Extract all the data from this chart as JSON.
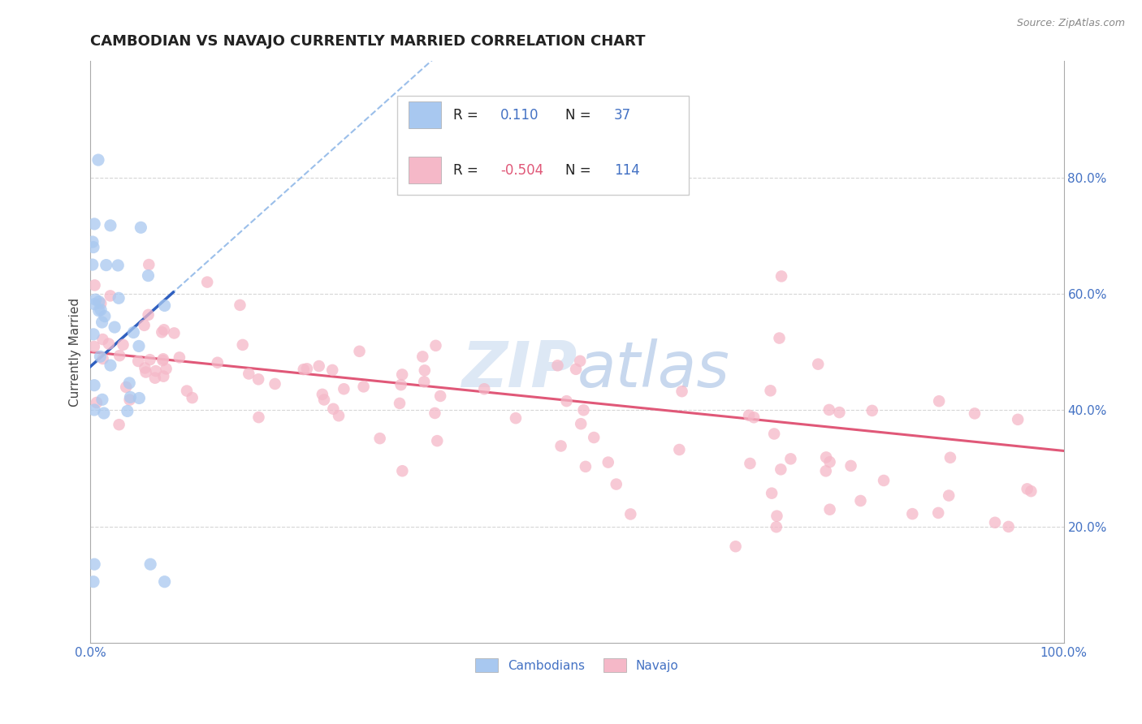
{
  "title": "CAMBODIAN VS NAVAJO CURRENTLY MARRIED CORRELATION CHART",
  "source": "Source: ZipAtlas.com",
  "ylabel": "Currently Married",
  "legend_cambodian_R": "0.110",
  "legend_cambodian_N": "37",
  "legend_navajo_R": "-0.504",
  "legend_navajo_N": "114",
  "cambodian_color": "#a8c8f0",
  "navajo_color": "#f5b8c8",
  "trend_cambodian_color": "#3060c0",
  "trend_navajo_color": "#e05878",
  "dashed_line_color": "#90b8e8",
  "watermark_color": "#dde8f5",
  "background_color": "#ffffff",
  "grid_color": "#cccccc",
  "xlim": [
    0.0,
    1.0
  ],
  "ylim": [
    0.0,
    1.0
  ],
  "ytick_vals": [
    0.2,
    0.4,
    0.6,
    0.8
  ],
  "ytick_labels": [
    "20.0%",
    "40.0%",
    "60.0%",
    "80.0%"
  ],
  "title_fontsize": 13,
  "axis_label_fontsize": 11,
  "tick_fontsize": 11,
  "legend_fontsize": 12,
  "source_fontsize": 9,
  "tick_color": "#4472c4",
  "title_color": "#222222",
  "ylabel_color": "#444444"
}
